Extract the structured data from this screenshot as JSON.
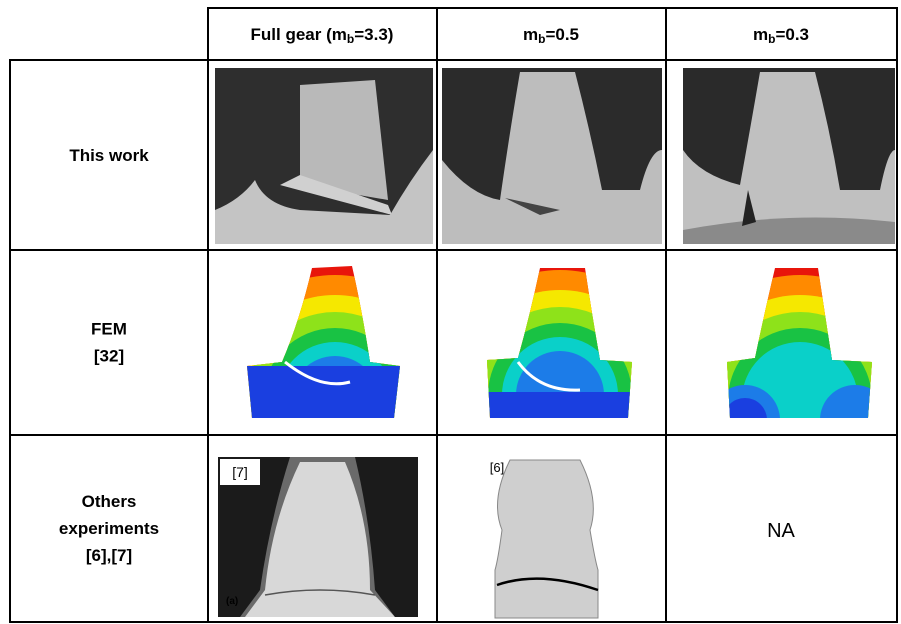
{
  "table": {
    "columns": [
      {
        "prefix": "Full gear (m",
        "sub": "b",
        "suffix": "=3.3)"
      },
      {
        "prefix": "m",
        "sub": "b",
        "suffix": "=0.5"
      },
      {
        "prefix": "m",
        "sub": "b",
        "suffix": "=0.3"
      }
    ],
    "rows": [
      {
        "label": [
          "This work"
        ]
      },
      {
        "label": [
          "FEM",
          "[32]"
        ]
      },
      {
        "label": [
          "Others",
          "experiments",
          "[6],[7]"
        ]
      }
    ],
    "image_labels": {
      "ref_7": "[7]",
      "panel_a": "(a)",
      "ref_6": "[6]"
    },
    "na": "NA"
  }
}
